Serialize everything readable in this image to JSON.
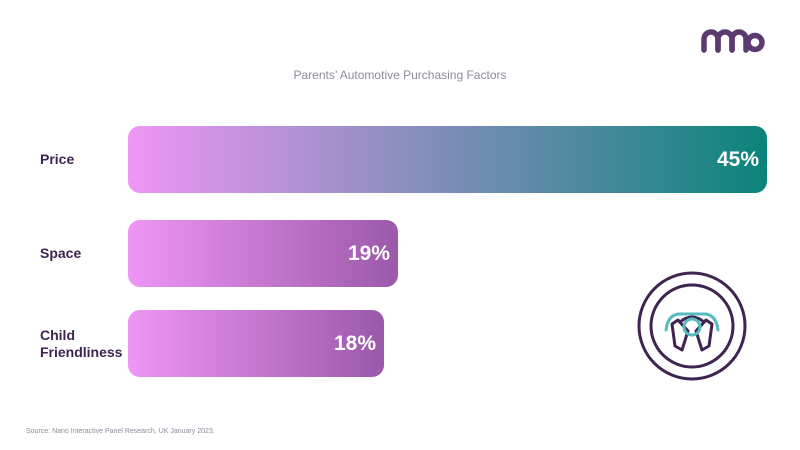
{
  "brand": {
    "logo_text": "nano",
    "logo_color": "#5b3a70"
  },
  "chart_data": {
    "type": "bar",
    "orientation": "horizontal",
    "title": "Parents’ Automotive Purchasing Factors",
    "categories": [
      "Price",
      "Space",
      "Child\nFriendliness"
    ],
    "values": [
      45,
      19,
      18
    ],
    "value_labels": [
      "45%",
      "19%",
      "18%"
    ],
    "unit": "%",
    "xlim": [
      0,
      45
    ],
    "grid": false,
    "legend": "none",
    "colors": {
      "gradient_start": "#ee96f4",
      "primary_end": "#0a847a",
      "secondary_end": "#9b59aa",
      "label": "#3d2451"
    }
  },
  "icon": {
    "name": "steering-wheel-icon",
    "outline": "#3d2451",
    "accent": "#56bcc0"
  },
  "footer": {
    "source": "Source: Nano Interactive Panel Research, UK January 2023."
  }
}
